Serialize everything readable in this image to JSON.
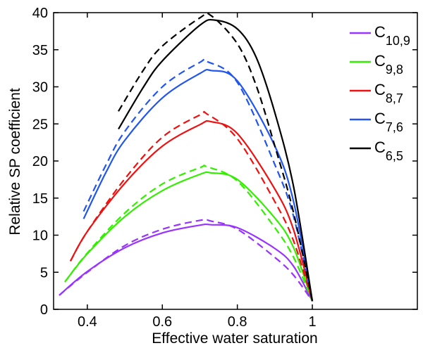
{
  "chart_data": {
    "type": "line",
    "title": "",
    "xlabel": "Effective water saturation",
    "ylabel": "Relative SP coefficient",
    "xlim": [
      0.31,
      1.28
    ],
    "ylim": [
      0,
      40
    ],
    "xticks": [
      0.4,
      0.6,
      0.8,
      1
    ],
    "xtick_labels": [
      "0.4",
      "0.6",
      "0.8",
      "1"
    ],
    "yticks": [
      0,
      5,
      10,
      15,
      20,
      25,
      30,
      35,
      40
    ],
    "ytick_labels": [
      "0",
      "5",
      "10",
      "15",
      "20",
      "25",
      "30",
      "35",
      "40"
    ],
    "grid": false,
    "legend_position": "top-right",
    "series": [
      {
        "name": "C10,9",
        "legend_main": "C",
        "legend_sub": "10,9",
        "color": "#9933ff",
        "solid": [
          [
            0.325,
            1.9
          ],
          [
            0.4,
            5.1
          ],
          [
            0.5,
            8.3
          ],
          [
            0.6,
            10.3
          ],
          [
            0.7,
            11.35
          ],
          [
            0.73,
            11.4
          ],
          [
            0.8,
            11.0
          ],
          [
            0.9,
            8.2
          ],
          [
            0.95,
            5.8
          ],
          [
            1.0,
            1.1
          ]
        ],
        "dashed": [
          [
            0.325,
            1.9
          ],
          [
            0.4,
            5.0
          ],
          [
            0.5,
            8.6
          ],
          [
            0.6,
            10.8
          ],
          [
            0.7,
            12.0
          ],
          [
            0.73,
            11.9
          ],
          [
            0.8,
            10.8
          ],
          [
            0.9,
            7.0
          ],
          [
            0.95,
            4.6
          ],
          [
            1.0,
            1.1
          ]
        ]
      },
      {
        "name": "C9,8",
        "legend_main": "C",
        "legend_sub": "9,8",
        "color": "#33ee00",
        "solid": [
          [
            0.34,
            3.7
          ],
          [
            0.4,
            7.5
          ],
          [
            0.5,
            12.5
          ],
          [
            0.6,
            16.0
          ],
          [
            0.7,
            18.2
          ],
          [
            0.73,
            18.4
          ],
          [
            0.8,
            17.5
          ],
          [
            0.9,
            12.3
          ],
          [
            0.95,
            8.3
          ],
          [
            1.0,
            1.1
          ]
        ],
        "dashed": [
          [
            0.34,
            3.7
          ],
          [
            0.4,
            7.6
          ],
          [
            0.5,
            13.0
          ],
          [
            0.6,
            16.9
          ],
          [
            0.7,
            19.1
          ],
          [
            0.72,
            19.2
          ],
          [
            0.8,
            17.3
          ],
          [
            0.9,
            11.0
          ],
          [
            0.95,
            7.0
          ],
          [
            1.0,
            1.1
          ]
        ]
      },
      {
        "name": "C8,7",
        "legend_main": "C",
        "legend_sub": "8,7",
        "color": "#ee1111",
        "solid": [
          [
            0.355,
            6.5
          ],
          [
            0.4,
            10.5
          ],
          [
            0.5,
            17.0
          ],
          [
            0.6,
            22.0
          ],
          [
            0.7,
            24.9
          ],
          [
            0.73,
            25.3
          ],
          [
            0.8,
            23.7
          ],
          [
            0.9,
            16.2
          ],
          [
            0.95,
            10.7
          ],
          [
            1.0,
            1.1
          ]
        ],
        "dashed": [
          [
            0.355,
            6.5
          ],
          [
            0.4,
            10.5
          ],
          [
            0.5,
            17.6
          ],
          [
            0.6,
            23.2
          ],
          [
            0.7,
            26.2
          ],
          [
            0.72,
            26.3
          ],
          [
            0.8,
            23.0
          ],
          [
            0.9,
            14.5
          ],
          [
            0.95,
            9.2
          ],
          [
            1.0,
            1.1
          ]
        ]
      },
      {
        "name": "C7,6",
        "legend_main": "C",
        "legend_sub": "7,6",
        "color": "#2255ee",
        "solid": [
          [
            0.39,
            12.2
          ],
          [
            0.45,
            18.5
          ],
          [
            0.5,
            22.8
          ],
          [
            0.6,
            28.5
          ],
          [
            0.7,
            31.8
          ],
          [
            0.73,
            32.2
          ],
          [
            0.8,
            30.8
          ],
          [
            0.9,
            22.0
          ],
          [
            0.95,
            14.5
          ],
          [
            1.0,
            1.1
          ]
        ],
        "dashed": [
          [
            0.39,
            13.2
          ],
          [
            0.45,
            19.5
          ],
          [
            0.5,
            24.0
          ],
          [
            0.6,
            30.0
          ],
          [
            0.7,
            33.3
          ],
          [
            0.72,
            33.4
          ],
          [
            0.8,
            30.6
          ],
          [
            0.9,
            19.5
          ],
          [
            0.95,
            12.5
          ],
          [
            1.0,
            1.1
          ]
        ]
      },
      {
        "name": "C6,5",
        "legend_main": "C",
        "legend_sub": "6,5",
        "color": "#000000",
        "solid": [
          [
            0.483,
            24.3
          ],
          [
            0.55,
            30.0
          ],
          [
            0.6,
            33.5
          ],
          [
            0.7,
            38.3
          ],
          [
            0.74,
            39.0
          ],
          [
            0.8,
            37.8
          ],
          [
            0.85,
            34.0
          ],
          [
            0.9,
            26.5
          ],
          [
            0.95,
            16.5
          ],
          [
            1.0,
            1.1
          ]
        ],
        "dashed": [
          [
            0.483,
            26.7
          ],
          [
            0.55,
            32.3
          ],
          [
            0.6,
            35.5
          ],
          [
            0.7,
            39.3
          ],
          [
            0.73,
            39.6
          ],
          [
            0.8,
            35.8
          ],
          [
            0.85,
            30.2
          ],
          [
            0.9,
            22.0
          ],
          [
            0.95,
            13.0
          ],
          [
            1.0,
            1.1
          ]
        ]
      }
    ]
  }
}
